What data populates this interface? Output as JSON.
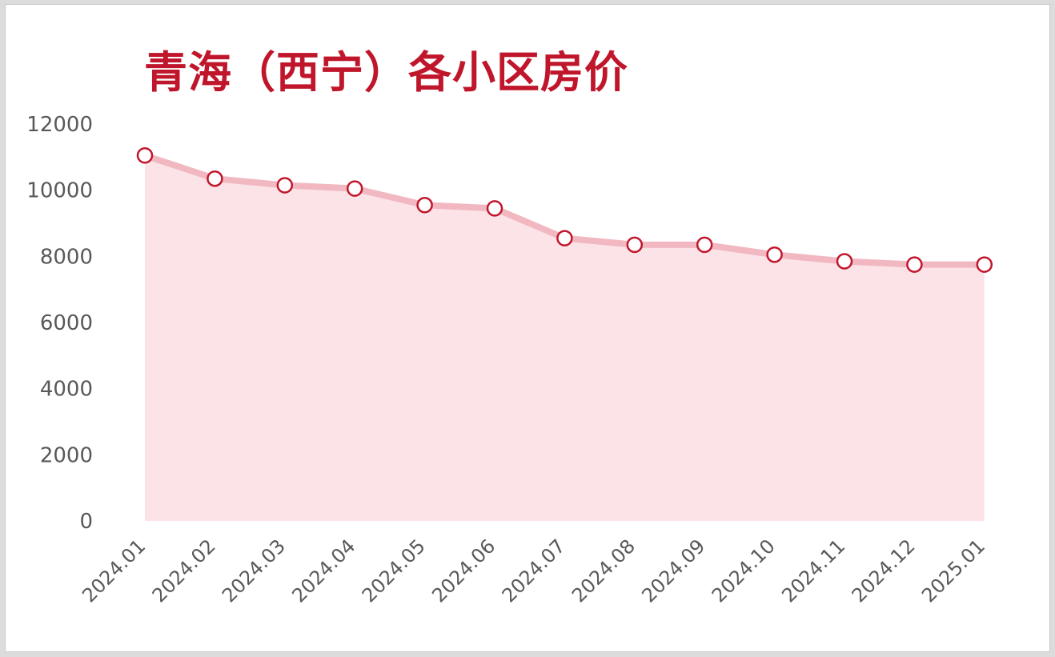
{
  "chart_data": {
    "type": "area",
    "title": "青海（西宁）各小区房价",
    "xlabel": "",
    "ylabel": "",
    "categories": [
      "2024.01",
      "2024.02",
      "2024.03",
      "2024.04",
      "2024.05",
      "2024.06",
      "2024.07",
      "2024.08",
      "2024.09",
      "2024.10",
      "2024.11",
      "2024.12",
      "2025.01"
    ],
    "series": [
      {
        "values": [
          11050,
          10350,
          10150,
          10050,
          9550,
          9450,
          8550,
          8350,
          8350,
          8050,
          7850,
          7750,
          7750
        ]
      }
    ],
    "ylim": [
      0,
      12000
    ],
    "yticks": [
      "0",
      "2000",
      "4000",
      "6000",
      "8000",
      "10000",
      "12000"
    ],
    "grid": false,
    "legend": "none",
    "colors": {
      "line": "#f2b8c2",
      "fill": "#fbe3e7",
      "marker": "#c0162b",
      "title": "#c0162b"
    }
  }
}
